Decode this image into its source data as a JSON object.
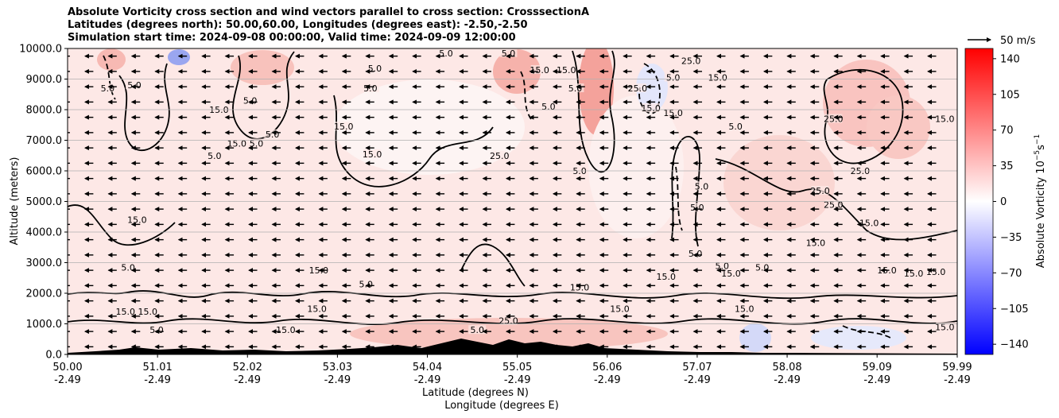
{
  "chart_data": {
    "type": "heatmap",
    "title_lines": [
      "Absolute Vorticity cross section and wind vectors parallel to cross section: CrosssectionA",
      "Latitudes (degrees north): 50.00,60.00, Longitudes (degrees east): -2.50,-2.50",
      "Simulation start time: 2024-09-08 00:00:00, Valid time: 2024-09-09 12:00:00"
    ],
    "xlabel_lat": "Latitude (degrees N)",
    "xlabel_lon": "Longitude (degrees E)",
    "ylabel": "Altitude (meters)",
    "xlim": [
      50.0,
      59.99
    ],
    "ylim": [
      0,
      10000
    ],
    "x_ticks": [
      {
        "lat": "50.00",
        "lon": "-2.49",
        "value": 50.0
      },
      {
        "lat": "51.01",
        "lon": "-2.49",
        "value": 51.01
      },
      {
        "lat": "52.02",
        "lon": "-2.49",
        "value": 52.02
      },
      {
        "lat": "53.03",
        "lon": "-2.49",
        "value": 53.03
      },
      {
        "lat": "54.04",
        "lon": "-2.49",
        "value": 54.04
      },
      {
        "lat": "55.05",
        "lon": "-2.49",
        "value": 55.05
      },
      {
        "lat": "56.06",
        "lon": "-2.49",
        "value": 56.06
      },
      {
        "lat": "57.07",
        "lon": "-2.49",
        "value": 57.07
      },
      {
        "lat": "58.08",
        "lon": "-2.49",
        "value": 58.08
      },
      {
        "lat": "59.09",
        "lon": "-2.49",
        "value": 59.09
      },
      {
        "lat": "59.99",
        "lon": "-2.49",
        "value": 59.99
      }
    ],
    "y_ticks": [
      {
        "label": "0.0",
        "value": 0
      },
      {
        "label": "1000.0",
        "value": 1000
      },
      {
        "label": "2000.0",
        "value": 2000
      },
      {
        "label": "3000.0",
        "value": 3000
      },
      {
        "label": "4000.0",
        "value": 4000
      },
      {
        "label": "5000.0",
        "value": 5000
      },
      {
        "label": "6000.0",
        "value": 6000
      },
      {
        "label": "7000.0",
        "value": 7000
      },
      {
        "label": "8000.0",
        "value": 8000
      },
      {
        "label": "9000.0",
        "value": 9000
      },
      {
        "label": "10000.0",
        "value": 10000
      }
    ],
    "grid": "horizontal",
    "colorbar": {
      "label_text": "Absolute Vorticity 10",
      "label_superscript": "−5",
      "label_unit": "s",
      "label_unit_superscript": "−1",
      "range": [
        -150,
        150
      ],
      "colors": {
        "low": "#0000ff",
        "mid": "#ffffff",
        "high": "#ff0000"
      },
      "ticks": [
        {
          "label": "140",
          "value": 140
        },
        {
          "label": "105",
          "value": 105
        },
        {
          "label": "70",
          "value": 70
        },
        {
          "label": "35",
          "value": 35
        },
        {
          "label": "0",
          "value": 0
        },
        {
          "label": "−35",
          "value": -35
        },
        {
          "label": "−70",
          "value": -70
        },
        {
          "label": "−105",
          "value": -105
        },
        {
          "label": "−140",
          "value": -140
        }
      ]
    },
    "wind_key": {
      "label": "50 m/s",
      "speed": 50
    },
    "wind_direction": "towards lower latitude",
    "contour_levels": [
      -5.0,
      5.0,
      15.0,
      25.0
    ],
    "contour_labels": [
      {
        "text": "5.0",
        "x": 54.25,
        "y": 9850
      },
      {
        "text": "5.0",
        "x": 54.95,
        "y": 9850
      },
      {
        "text": "15.0",
        "x": 55.3,
        "y": 9300
      },
      {
        "text": "15.0",
        "x": 55.6,
        "y": 9300
      },
      {
        "text": "5.0",
        "x": 53.45,
        "y": 9350
      },
      {
        "text": "5.0",
        "x": 50.45,
        "y": 8700
      },
      {
        "text": "5.0",
        "x": 50.75,
        "y": 8800
      },
      {
        "text": "15.0",
        "x": 51.7,
        "y": 8000
      },
      {
        "text": "5.0",
        "x": 52.05,
        "y": 8300
      },
      {
        "text": "15.0",
        "x": 53.1,
        "y": 7450
      },
      {
        "text": "5.0",
        "x": 53.4,
        "y": 8700
      },
      {
        "text": "5.0",
        "x": 55.4,
        "y": 8100
      },
      {
        "text": "5.0",
        "x": 55.7,
        "y": 8700
      },
      {
        "text": "25.0",
        "x": 57.0,
        "y": 9600
      },
      {
        "text": "5.0",
        "x": 56.8,
        "y": 9050
      },
      {
        "text": "25.0",
        "x": 56.4,
        "y": 8700
      },
      {
        "text": "15.0",
        "x": 56.55,
        "y": 8050
      },
      {
        "text": "15.0",
        "x": 57.3,
        "y": 9050
      },
      {
        "text": "5.0",
        "x": 57.5,
        "y": 7450
      },
      {
        "text": "15.0",
        "x": 56.8,
        "y": 7900
      },
      {
        "text": "25.0",
        "x": 58.6,
        "y": 7700
      },
      {
        "text": "15.0",
        "x": 59.85,
        "y": 7700
      },
      {
        "text": "15.0",
        "x": 51.9,
        "y": 6900
      },
      {
        "text": "5.0",
        "x": 51.65,
        "y": 6500
      },
      {
        "text": "5.0",
        "x": 52.12,
        "y": 6900
      },
      {
        "text": "5.0",
        "x": 52.3,
        "y": 7200
      },
      {
        "text": "15.0",
        "x": 53.42,
        "y": 6550
      },
      {
        "text": "25.0",
        "x": 54.85,
        "y": 6500
      },
      {
        "text": "5.0",
        "x": 55.75,
        "y": 6000
      },
      {
        "text": "5.0",
        "x": 57.12,
        "y": 5500
      },
      {
        "text": "5.0",
        "x": 57.07,
        "y": 4800
      },
      {
        "text": "25.0",
        "x": 58.45,
        "y": 5350
      },
      {
        "text": "25.0",
        "x": 58.6,
        "y": 4900
      },
      {
        "text": "25.0",
        "x": 58.9,
        "y": 6000
      },
      {
        "text": "15.0",
        "x": 59.0,
        "y": 4300
      },
      {
        "text": "15.0",
        "x": 50.78,
        "y": 4400
      },
      {
        "text": "15.0",
        "x": 58.4,
        "y": 3650
      },
      {
        "text": "5.0",
        "x": 50.68,
        "y": 2850
      },
      {
        "text": "15.0",
        "x": 52.82,
        "y": 2750
      },
      {
        "text": "5.0",
        "x": 53.35,
        "y": 2300
      },
      {
        "text": "15.0",
        "x": 55.75,
        "y": 2200
      },
      {
        "text": "15.0",
        "x": 56.72,
        "y": 2550
      },
      {
        "text": "15.0",
        "x": 57.45,
        "y": 2650
      },
      {
        "text": "15.0",
        "x": 59.2,
        "y": 2750
      },
      {
        "text": "15.0",
        "x": 59.5,
        "y": 2650
      },
      {
        "text": "15.0",
        "x": 59.75,
        "y": 2700
      },
      {
        "text": "5.0",
        "x": 57.35,
        "y": 2900
      },
      {
        "text": "5.0",
        "x": 57.05,
        "y": 3300
      },
      {
        "text": "5.0",
        "x": 57.8,
        "y": 2850
      },
      {
        "text": "25.0",
        "x": 54.95,
        "y": 1100
      },
      {
        "text": "15.0",
        "x": 56.2,
        "y": 1500
      },
      {
        "text": "15.0",
        "x": 57.6,
        "y": 1500
      },
      {
        "text": "5.0",
        "x": 51.0,
        "y": 800
      },
      {
        "text": "15.0",
        "x": 52.8,
        "y": 1500
      },
      {
        "text": "15.0",
        "x": 52.45,
        "y": 800
      },
      {
        "text": "15.0",
        "x": 50.9,
        "y": 1400
      },
      {
        "text": "15.0",
        "x": 50.65,
        "y": 1400
      },
      {
        "text": "5.0",
        "x": 54.6,
        "y": 800
      },
      {
        "text": "15.0",
        "x": 59.85,
        "y": 900
      }
    ],
    "wind_grid": {
      "x_columns": 38,
      "y_levels": [
        250,
        750,
        1250,
        1750,
        2250,
        2750,
        3250,
        3750,
        4250,
        4750,
        5250,
        5750,
        6250,
        6750,
        7250,
        7750,
        8250,
        8750,
        9250,
        9750
      ],
      "typical_speed_ms": 18
    }
  }
}
